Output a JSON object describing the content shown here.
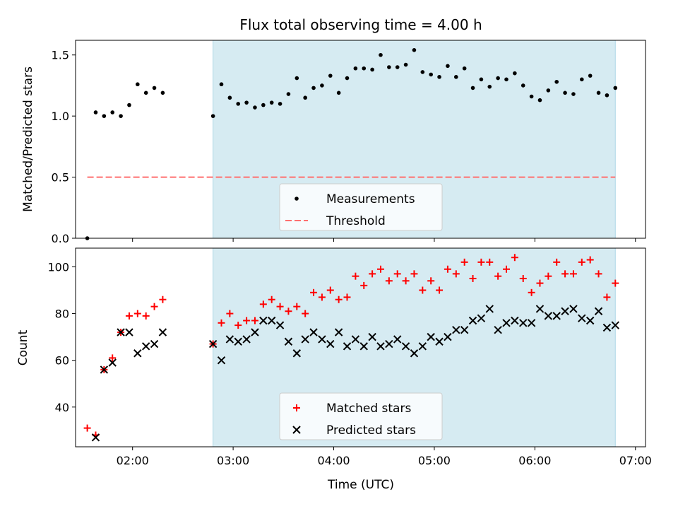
{
  "title": "Flux total observing time = 4.00 h",
  "colors": {
    "span_fill": "#add8e6",
    "threshold": "#ff6f6f",
    "matched": "#ff0000",
    "predicted": "#000000",
    "measurement": "#000000"
  },
  "chart_data": [
    {
      "type": "scatter",
      "ylabel": "Matched/Predicted stars",
      "xlabel": "",
      "xlim": [
        "01:26",
        "07:06"
      ],
      "ylim": [
        0,
        1.62
      ],
      "yticks": [
        0.0,
        0.5,
        1.0,
        1.5
      ],
      "ytick_labels": [
        "0.0",
        "0.5",
        "1.0",
        "1.5"
      ],
      "shaded_span": [
        "02:48",
        "06:48"
      ],
      "legend": {
        "placement": "lower-center",
        "entries": [
          "Measurements",
          "Threshold"
        ]
      },
      "series": [
        {
          "name": "Measurements",
          "marker": "dot",
          "x": [
            "01:33",
            "01:38",
            "01:43",
            "01:48",
            "01:53",
            "01:58",
            "02:03",
            "02:08",
            "02:13",
            "02:18",
            "02:48",
            "02:53",
            "02:58",
            "03:03",
            "03:08",
            "03:13",
            "03:18",
            "03:23",
            "03:28",
            "03:33",
            "03:38",
            "03:43",
            "03:48",
            "03:53",
            "03:58",
            "04:03",
            "04:08",
            "04:13",
            "04:18",
            "04:23",
            "04:28",
            "04:33",
            "04:38",
            "04:43",
            "04:48",
            "04:53",
            "04:58",
            "05:03",
            "05:08",
            "05:13",
            "05:18",
            "05:23",
            "05:28",
            "05:33",
            "05:38",
            "05:43",
            "05:48",
            "05:53",
            "05:58",
            "06:03",
            "06:08",
            "06:13",
            "06:18",
            "06:23",
            "06:28",
            "06:33",
            "06:38",
            "06:43",
            "06:48"
          ],
          "values": [
            0.0,
            1.03,
            1.0,
            1.03,
            1.0,
            1.09,
            1.26,
            1.19,
            1.23,
            1.19,
            1.0,
            1.26,
            1.15,
            1.1,
            1.11,
            1.07,
            1.09,
            1.11,
            1.1,
            1.18,
            1.31,
            1.15,
            1.23,
            1.25,
            1.33,
            1.19,
            1.31,
            1.39,
            1.39,
            1.38,
            1.5,
            1.4,
            1.4,
            1.42,
            1.54,
            1.36,
            1.34,
            1.32,
            1.41,
            1.32,
            1.39,
            1.23,
            1.3,
            1.24,
            1.31,
            1.3,
            1.35,
            1.25,
            1.16,
            1.13,
            1.21,
            1.28,
            1.19,
            1.18,
            1.3,
            1.33,
            1.19,
            1.17,
            1.23
          ]
        },
        {
          "name": "Threshold",
          "style": "dashed",
          "x": [
            "01:33",
            "06:48"
          ],
          "values": [
            0.5,
            0.5
          ]
        }
      ]
    },
    {
      "type": "scatter",
      "ylabel": "Count",
      "xlabel": "Time (UTC)",
      "xlim": [
        "01:26",
        "07:06"
      ],
      "ylim": [
        23,
        108
      ],
      "yticks": [
        40,
        60,
        80,
        100
      ],
      "ytick_labels": [
        "40",
        "60",
        "80",
        "100"
      ],
      "xticks": [
        "02:00",
        "03:00",
        "04:00",
        "05:00",
        "06:00",
        "07:00"
      ],
      "xtick_labels": [
        "02:00",
        "03:00",
        "04:00",
        "05:00",
        "06:00",
        "07:00"
      ],
      "shaded_span": [
        "02:48",
        "06:48"
      ],
      "legend": {
        "placement": "lower-center",
        "entries": [
          "Matched stars",
          "Predicted stars"
        ]
      },
      "series": [
        {
          "name": "Matched stars",
          "marker": "plus",
          "x": [
            "01:33",
            "01:38",
            "01:43",
            "01:48",
            "01:53",
            "01:58",
            "02:03",
            "02:08",
            "02:13",
            "02:18",
            "02:48",
            "02:53",
            "02:58",
            "03:03",
            "03:08",
            "03:13",
            "03:18",
            "03:23",
            "03:28",
            "03:33",
            "03:38",
            "03:43",
            "03:48",
            "03:53",
            "03:58",
            "04:03",
            "04:08",
            "04:13",
            "04:18",
            "04:23",
            "04:28",
            "04:33",
            "04:38",
            "04:43",
            "04:48",
            "04:53",
            "04:58",
            "05:03",
            "05:08",
            "05:13",
            "05:18",
            "05:23",
            "05:28",
            "05:33",
            "05:38",
            "05:43",
            "05:48",
            "05:53",
            "05:58",
            "06:03",
            "06:08",
            "06:13",
            "06:18",
            "06:23",
            "06:28",
            "06:33",
            "06:38",
            "06:43",
            "06:48"
          ],
          "values": [
            31,
            28,
            56,
            61,
            72,
            79,
            80,
            79,
            83,
            86,
            67,
            76,
            80,
            75,
            77,
            77,
            84,
            86,
            83,
            81,
            83,
            80,
            89,
            87,
            90,
            86,
            87,
            96,
            92,
            97,
            99,
            94,
            97,
            94,
            97,
            90,
            94,
            90,
            99,
            97,
            102,
            95,
            102,
            102,
            96,
            99,
            104,
            95,
            89,
            93,
            96,
            102,
            97,
            97,
            102,
            103,
            97,
            87,
            93
          ]
        },
        {
          "name": "Predicted stars",
          "marker": "x",
          "x": [
            "01:38",
            "01:43",
            "01:48",
            "01:53",
            "01:58",
            "02:03",
            "02:08",
            "02:13",
            "02:18",
            "02:48",
            "02:53",
            "02:58",
            "03:03",
            "03:08",
            "03:13",
            "03:18",
            "03:23",
            "03:28",
            "03:33",
            "03:38",
            "03:43",
            "03:48",
            "03:53",
            "03:58",
            "04:03",
            "04:08",
            "04:13",
            "04:18",
            "04:23",
            "04:28",
            "04:33",
            "04:38",
            "04:43",
            "04:48",
            "04:53",
            "04:58",
            "05:03",
            "05:08",
            "05:13",
            "05:18",
            "05:23",
            "05:28",
            "05:33",
            "05:38",
            "05:43",
            "05:48",
            "05:53",
            "05:58",
            "06:03",
            "06:08",
            "06:13",
            "06:18",
            "06:23",
            "06:28",
            "06:33",
            "06:38",
            "06:43",
            "06:48"
          ],
          "values": [
            27,
            56,
            59,
            72,
            72,
            63,
            66,
            67,
            72,
            67,
            60,
            69,
            68,
            69,
            72,
            77,
            77,
            75,
            68,
            63,
            69,
            72,
            69,
            67,
            72,
            66,
            69,
            66,
            70,
            66,
            67,
            69,
            66,
            63,
            66,
            70,
            68,
            70,
            73,
            73,
            77,
            78,
            82,
            73,
            76,
            77,
            76,
            76,
            82,
            79,
            79,
            81,
            82,
            78,
            77,
            81,
            74,
            75
          ]
        }
      ]
    }
  ]
}
